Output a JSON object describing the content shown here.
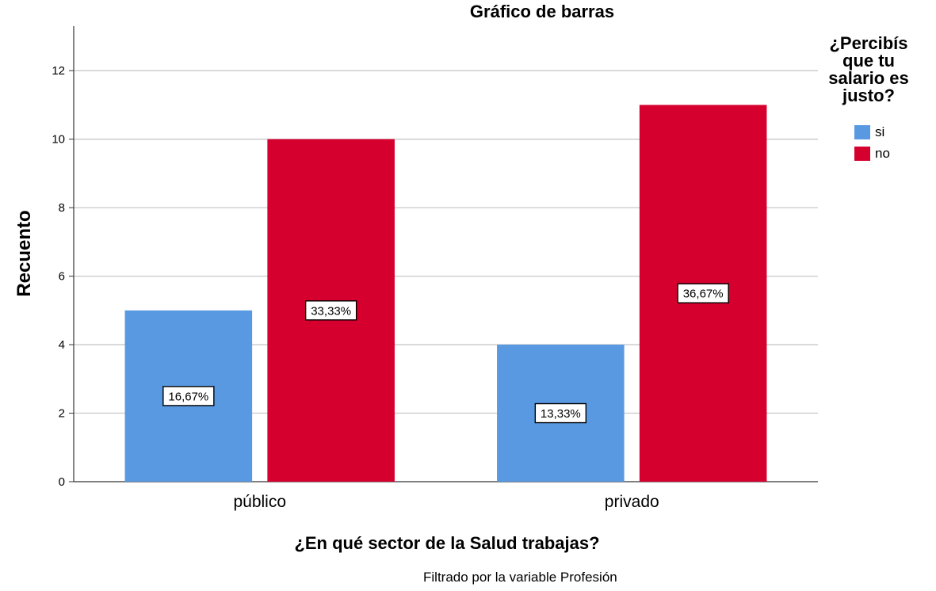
{
  "chart_data": {
    "type": "bar",
    "title": "Gráfico de barras",
    "xlabel": "¿En qué sector de la Salud trabajas?",
    "ylabel": "Recuento",
    "categories": [
      "público",
      "privado"
    ],
    "ylim": [
      0,
      13.3
    ],
    "yticks": [
      0,
      2,
      4,
      6,
      8,
      10,
      12
    ],
    "grid": true,
    "legend_title": "¿Percibís que tu salario es justo?",
    "legend_placement": "right",
    "series": [
      {
        "name": "si",
        "color": "#5899e2",
        "values": [
          5,
          4
        ],
        "labels": [
          "16,67%",
          "13,33%"
        ]
      },
      {
        "name": "no",
        "color": "#d6002f",
        "values": [
          10,
          11
        ],
        "labels": [
          "33,33%",
          "36,67%"
        ]
      }
    ],
    "footnote": "Filtrado por la variable Profesión"
  }
}
